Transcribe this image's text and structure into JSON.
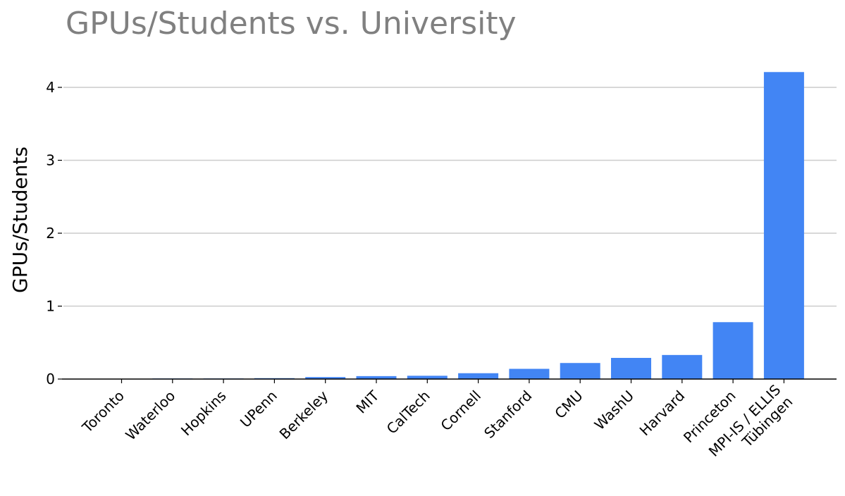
{
  "chart_data": {
    "type": "bar",
    "title": "GPUs/Students vs. University",
    "xlabel": "",
    "ylabel": "GPUs/Students",
    "ylim": [
      0,
      4.3
    ],
    "yticks": [
      0,
      1,
      2,
      3,
      4
    ],
    "grid": "horizontal",
    "categories": [
      "Toronto",
      "Waterloo",
      "Hopkins",
      "UPenn",
      "Berkeley",
      "MIT",
      "CalTech",
      "Cornell",
      "Stanford",
      "CMU",
      "WashU",
      "Harvard",
      "Princeton",
      "MPI-IS / ELLIS\nTübingen"
    ],
    "values": [
      0.0,
      0.003,
      0.005,
      0.012,
      0.027,
      0.04,
      0.045,
      0.08,
      0.14,
      0.22,
      0.29,
      0.33,
      0.78,
      4.21
    ],
    "bar_color": "#4285f4"
  }
}
